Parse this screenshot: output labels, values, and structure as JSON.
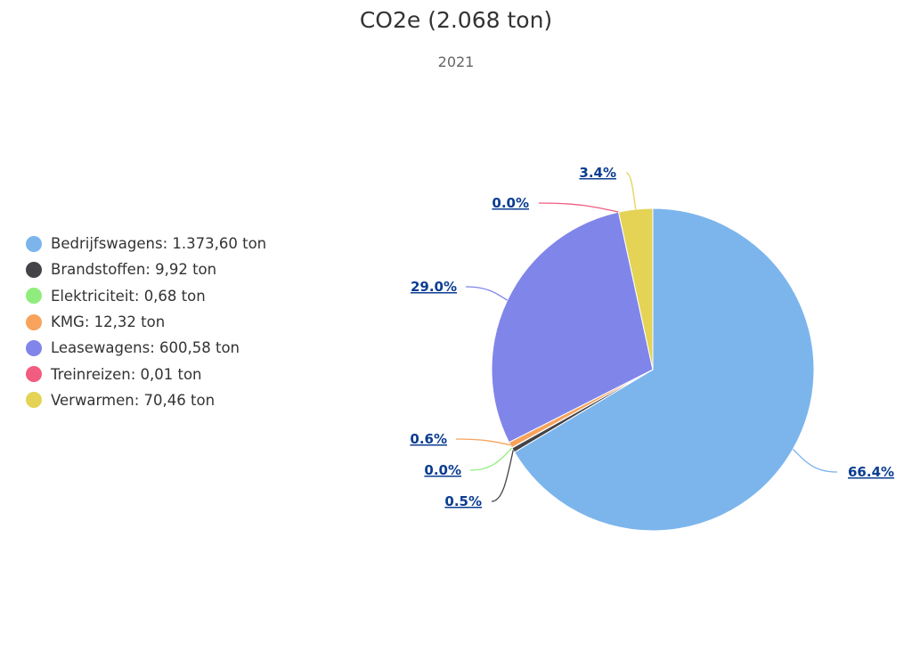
{
  "chart_data": {
    "type": "pie",
    "title": "CO2e (2.068 ton)",
    "subtitle": "2021",
    "unit": "ton",
    "legend_position": "left",
    "slices": [
      {
        "name": "Bedrijfswagens",
        "value": 1373.6,
        "legend_label": "Bedrijfswagens: 1.373,60 ton",
        "pct_label": "66.4%",
        "color": "#7cb5ec"
      },
      {
        "name": "Brandstoffen",
        "value": 9.92,
        "legend_label": "Brandstoffen: 9,92 ton",
        "pct_label": "0.5%",
        "color": "#434348"
      },
      {
        "name": "Elektriciteit",
        "value": 0.68,
        "legend_label": "Elektriciteit: 0,68 ton",
        "pct_label": "0.0%",
        "color": "#90ed7d"
      },
      {
        "name": "KMG",
        "value": 12.32,
        "legend_label": "KMG: 12,32 ton",
        "pct_label": "0.6%",
        "color": "#f7a35c"
      },
      {
        "name": "Leasewagens",
        "value": 600.58,
        "legend_label": "Leasewagens: 600,58 ton",
        "pct_label": "29.0%",
        "color": "#8085e9"
      },
      {
        "name": "Treinreizen",
        "value": 0.01,
        "legend_label": "Treinreizen: 0,01 ton",
        "pct_label": "0.0%",
        "color": "#f15c80"
      },
      {
        "name": "Verwarmen",
        "value": 70.46,
        "legend_label": "Verwarmen: 70,46 ton",
        "pct_label": "3.4%",
        "color": "#e4d354"
      }
    ]
  }
}
